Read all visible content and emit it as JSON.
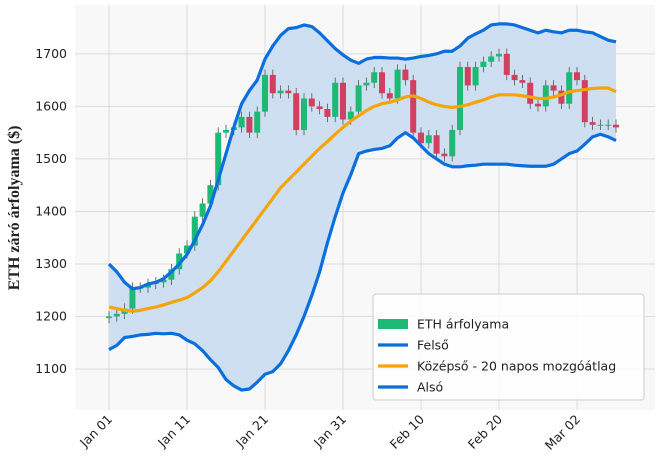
{
  "chart_data": {
    "type": "candlestick",
    "y_label": "ETH záró árfolyama ($)",
    "ylim": [
      1022,
      1793
    ],
    "yticks": [
      1100,
      1200,
      1300,
      1400,
      1500,
      1600,
      1700
    ],
    "grid": true,
    "legend": "lower right",
    "band_fill": "#cddff0",
    "categories": [
      "Jan 01",
      null,
      null,
      null,
      null,
      null,
      null,
      null,
      null,
      null,
      "Jan 11",
      null,
      null,
      null,
      null,
      null,
      null,
      null,
      null,
      null,
      "Jan 21",
      null,
      null,
      null,
      null,
      null,
      null,
      null,
      null,
      null,
      "Jan 31",
      null,
      null,
      null,
      null,
      null,
      null,
      null,
      null,
      null,
      "Feb 10",
      null,
      null,
      null,
      null,
      null,
      null,
      null,
      null,
      null,
      "Feb 20",
      null,
      null,
      null,
      null,
      null,
      null,
      null,
      null,
      null,
      "Mar 02",
      null,
      null,
      null,
      null,
      null
    ],
    "series": [
      {
        "name": "ETH árfolyama",
        "color": "#1db975",
        "down_color": "#d1405e",
        "open": [
          1197,
          1200,
          1205,
          1215,
          1255,
          1255,
          1262,
          1265,
          1270,
          1290,
          1320,
          1335,
          1390,
          1415,
          1450,
          1550,
          1555,
          1560,
          1580,
          1550,
          1590,
          1660,
          1625,
          1630,
          1625,
          1555,
          1615,
          1600,
          1595,
          1580,
          1645,
          1575,
          1590,
          1640,
          1645,
          1665,
          1625,
          1615,
          1670,
          1650,
          1550,
          1530,
          1545,
          1510,
          1505,
          1555,
          1675,
          1640,
          1675,
          1685,
          1695,
          1700,
          1660,
          1650,
          1645,
          1605,
          1600,
          1640,
          1630,
          1605,
          1665,
          1650,
          1570,
          1565,
          1565,
          1565
        ],
        "high": [
          1210,
          1215,
          1225,
          1265,
          1265,
          1272,
          1275,
          1280,
          1300,
          1330,
          1345,
          1400,
          1425,
          1460,
          1560,
          1565,
          1570,
          1590,
          1590,
          1600,
          1670,
          1670,
          1640,
          1640,
          1635,
          1625,
          1625,
          1610,
          1605,
          1655,
          1655,
          1600,
          1650,
          1655,
          1675,
          1675,
          1635,
          1680,
          1680,
          1660,
          1560,
          1555,
          1555,
          1520,
          1565,
          1685,
          1685,
          1685,
          1695,
          1705,
          1710,
          1710,
          1670,
          1660,
          1655,
          1615,
          1650,
          1650,
          1640,
          1675,
          1675,
          1660,
          1580,
          1575,
          1575,
          1575
        ],
        "low": [
          1187,
          1190,
          1195,
          1205,
          1245,
          1245,
          1252,
          1255,
          1260,
          1280,
          1310,
          1325,
          1380,
          1405,
          1440,
          1540,
          1545,
          1550,
          1540,
          1540,
          1580,
          1615,
          1615,
          1615,
          1545,
          1545,
          1590,
          1585,
          1570,
          1570,
          1565,
          1565,
          1580,
          1630,
          1635,
          1615,
          1605,
          1605,
          1640,
          1540,
          1520,
          1520,
          1500,
          1495,
          1495,
          1545,
          1630,
          1630,
          1665,
          1675,
          1685,
          1650,
          1640,
          1635,
          1595,
          1590,
          1590,
          1620,
          1595,
          1595,
          1640,
          1560,
          1555,
          1555,
          1555,
          1550
        ],
        "close": [
          1200,
          1205,
          1215,
          1255,
          1255,
          1262,
          1265,
          1270,
          1290,
          1320,
          1335,
          1390,
          1415,
          1450,
          1550,
          1555,
          1560,
          1580,
          1550,
          1590,
          1660,
          1625,
          1630,
          1625,
          1555,
          1615,
          1600,
          1595,
          1580,
          1645,
          1575,
          1590,
          1640,
          1645,
          1665,
          1625,
          1615,
          1670,
          1650,
          1550,
          1530,
          1545,
          1510,
          1505,
          1555,
          1675,
          1640,
          1675,
          1685,
          1695,
          1700,
          1660,
          1650,
          1645,
          1605,
          1600,
          1640,
          1630,
          1605,
          1665,
          1650,
          1570,
          1565,
          1565,
          1565,
          1560
        ]
      },
      {
        "name": "Felső",
        "color": "#0a6fdc",
        "values": [
          1300,
          1285,
          1265,
          1253,
          1255,
          1262,
          1265,
          1272,
          1285,
          1300,
          1318,
          1345,
          1375,
          1410,
          1460,
          1510,
          1560,
          1605,
          1630,
          1650,
          1690,
          1715,
          1735,
          1748,
          1750,
          1755,
          1752,
          1740,
          1725,
          1710,
          1698,
          1688,
          1682,
          1690,
          1693,
          1693,
          1692,
          1692,
          1690,
          1692,
          1695,
          1697,
          1700,
          1705,
          1705,
          1715,
          1730,
          1738,
          1745,
          1755,
          1757,
          1757,
          1755,
          1750,
          1745,
          1740,
          1745,
          1742,
          1740,
          1745,
          1745,
          1742,
          1740,
          1733,
          1726,
          1723
        ]
      },
      {
        "name": "Középső - 20 napos mozgóátlag",
        "color": "#f6a40c",
        "values": [
          1218,
          1215,
          1212,
          1210,
          1212,
          1215,
          1218,
          1222,
          1227,
          1231,
          1236,
          1245,
          1255,
          1268,
          1285,
          1305,
          1325,
          1345,
          1365,
          1385,
          1405,
          1425,
          1445,
          1460,
          1475,
          1490,
          1505,
          1520,
          1533,
          1547,
          1560,
          1572,
          1582,
          1592,
          1600,
          1605,
          1608,
          1612,
          1618,
          1620,
          1615,
          1608,
          1603,
          1600,
          1598,
          1600,
          1603,
          1608,
          1612,
          1618,
          1622,
          1622,
          1622,
          1620,
          1618,
          1615,
          1615,
          1618,
          1622,
          1628,
          1630,
          1632,
          1634,
          1635,
          1635,
          1628
        ]
      },
      {
        "name": "Alsó",
        "color": "#0a6fdc",
        "values": [
          1137,
          1145,
          1160,
          1162,
          1165,
          1166,
          1168,
          1167,
          1168,
          1165,
          1155,
          1148,
          1135,
          1118,
          1103,
          1080,
          1068,
          1060,
          1062,
          1075,
          1090,
          1095,
          1110,
          1135,
          1165,
          1200,
          1240,
          1285,
          1340,
          1390,
          1435,
          1470,
          1510,
          1515,
          1518,
          1520,
          1525,
          1540,
          1550,
          1540,
          1525,
          1510,
          1500,
          1490,
          1485,
          1485,
          1487,
          1488,
          1490,
          1490,
          1490,
          1490,
          1488,
          1487,
          1486,
          1486,
          1486,
          1490,
          1500,
          1510,
          1515,
          1528,
          1542,
          1547,
          1542,
          1535
        ]
      }
    ]
  }
}
